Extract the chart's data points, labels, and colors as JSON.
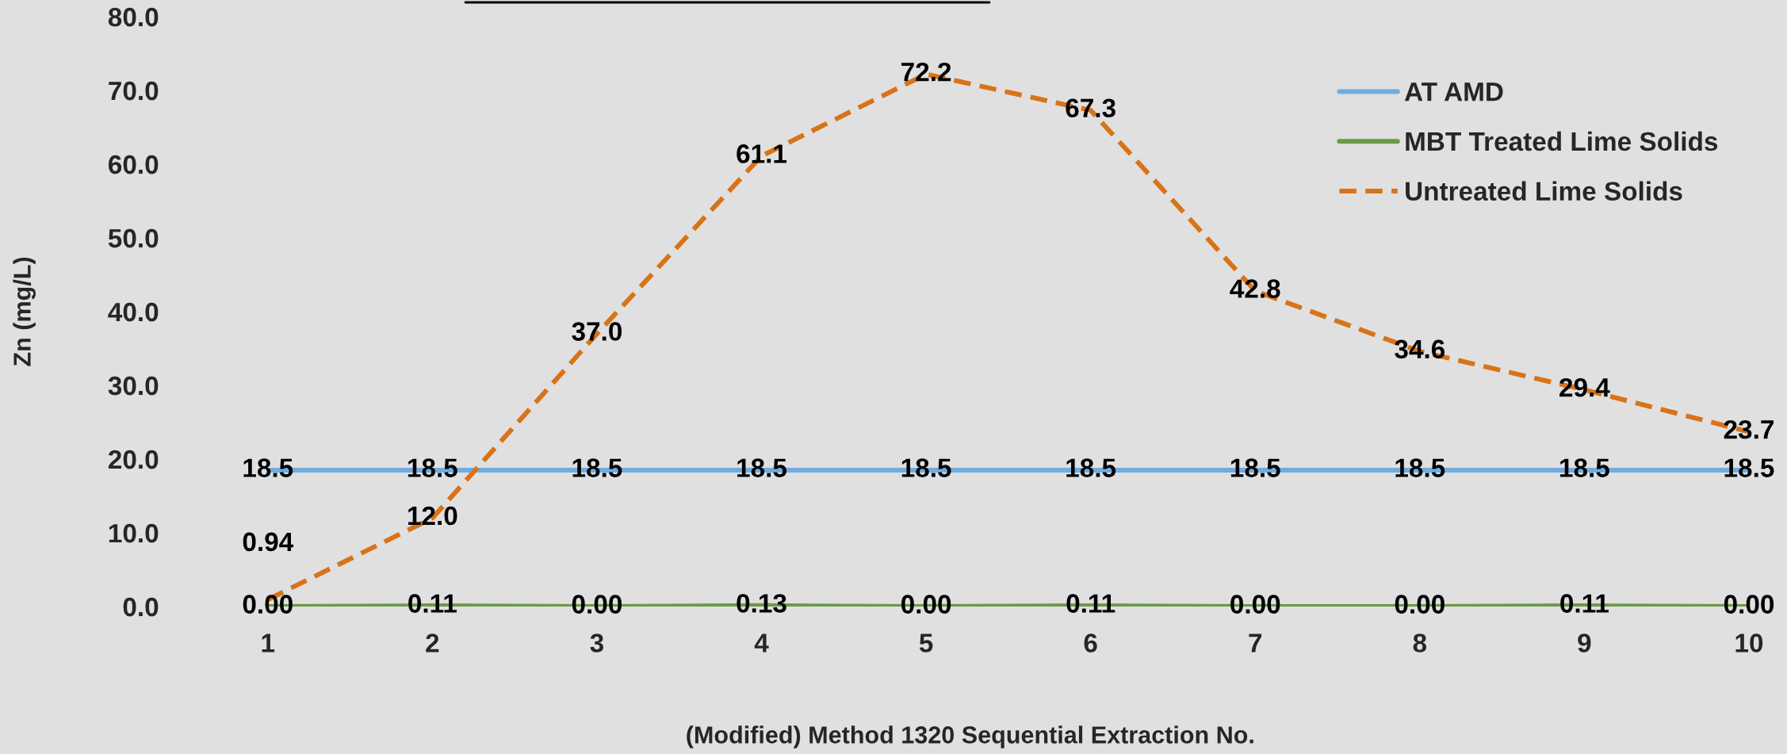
{
  "chart_data": {
    "type": "line",
    "xlabel": "(Modified) Method 1320 Sequential Extraction No.",
    "ylabel": "Zn (mg/L)",
    "categories": [
      "1",
      "2",
      "3",
      "4",
      "5",
      "6",
      "7",
      "8",
      "9",
      "10"
    ],
    "ylim": [
      0,
      80
    ],
    "yticks": [
      {
        "value": 0,
        "label": "0.0"
      },
      {
        "value": 10,
        "label": "10.0"
      },
      {
        "value": 20,
        "label": "20.0"
      },
      {
        "value": 30,
        "label": "30.0"
      },
      {
        "value": 40,
        "label": "40.0"
      },
      {
        "value": 50,
        "label": "50.0"
      },
      {
        "value": 60,
        "label": "60.0"
      },
      {
        "value": 70,
        "label": "70.0"
      },
      {
        "value": 80,
        "label": "80.0"
      }
    ],
    "legend": "top right",
    "series": [
      {
        "name": "AT AMD",
        "color": "#6fade0",
        "line_style": "solid",
        "values": [
          18.5,
          18.5,
          18.5,
          18.5,
          18.5,
          18.5,
          18.5,
          18.5,
          18.5,
          18.5
        ],
        "value_labels": [
          "18.5",
          "18.5",
          "18.5",
          "18.5",
          "18.5",
          "18.5",
          "18.5",
          "18.5",
          "18.5",
          "18.5"
        ]
      },
      {
        "name": "MBT Treated Lime Solids",
        "color": "#6a9a48",
        "line_style": "solid",
        "values": [
          0.0,
          0.11,
          0.0,
          0.13,
          0.0,
          0.11,
          0.0,
          0.0,
          0.11,
          0.0
        ],
        "value_labels": [
          "0.00",
          "0.11",
          "0.00",
          "0.13",
          "0.00",
          "0.11",
          "0.00",
          "0.00",
          "0.11",
          "0.00"
        ]
      },
      {
        "name": "Untreated Lime Solids",
        "color": "#d87319",
        "line_style": "dashed",
        "values": [
          0.94,
          12.0,
          37.0,
          61.1,
          72.2,
          67.3,
          42.8,
          34.6,
          29.4,
          23.7
        ],
        "value_labels": [
          "0.94",
          "12.0",
          "37.0",
          "61.1",
          "72.2",
          "67.3",
          "42.8",
          "34.6",
          "29.4",
          "23.7"
        ]
      }
    ]
  }
}
